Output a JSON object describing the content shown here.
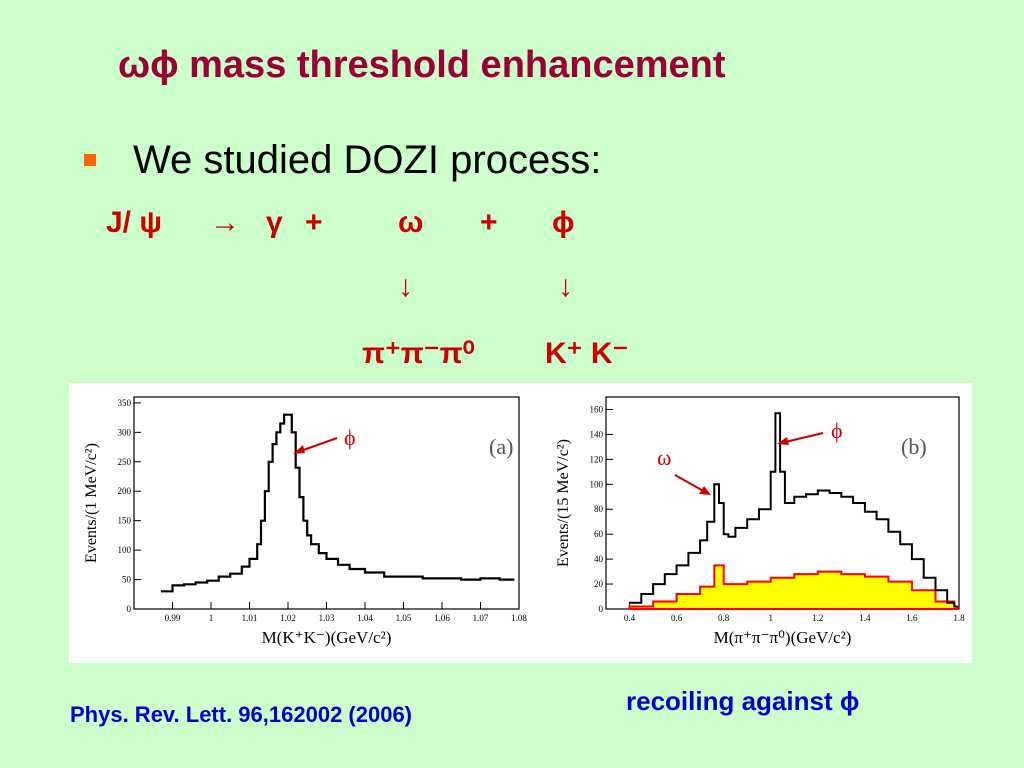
{
  "slide": {
    "title": "ωϕ mass threshold enhancement",
    "bullet": "We studied DOZI process:",
    "reaction": {
      "lhs": "J/ ψ",
      "arrow": "→",
      "gamma": "γ",
      "plus1": "+",
      "omega": "ω",
      "plus2": "+",
      "phi": "ϕ",
      "down1": "↓",
      "down2": "↓",
      "omega_decay": "π⁺π⁻π⁰",
      "phi_decay": "K⁺ K⁻"
    },
    "reference": "Phys. Rev. Lett. 96,162002 (2006)",
    "caption": "recoiling against ϕ"
  },
  "colors": {
    "title": "#990033",
    "reaction": "#cc0000",
    "reference": "#0000cc",
    "bullet": "#ff6600",
    "background": "#ccffcc",
    "fill": "#ffff00",
    "red_hist": "#ff0000"
  },
  "chart_data": [
    {
      "type": "line",
      "panel_label": "(a)",
      "xlabel": "M(K⁺K⁻)(GeV/c²)",
      "ylabel": "Events/(1 MeV/c²)",
      "xlim": [
        0.98,
        1.08
      ],
      "ylim": [
        0,
        360
      ],
      "x_ticks": [
        "0.99",
        "1",
        "1.01",
        "1.02",
        "1.03",
        "1.04",
        "1.05",
        "1.06",
        "1.07",
        "1.08"
      ],
      "y_ticks": [
        "0",
        "50",
        "100",
        "150",
        "200",
        "250",
        "300",
        "350"
      ],
      "annotation": "ϕ",
      "series": [
        {
          "x": [
            0.987,
            0.99,
            0.993,
            0.996,
            0.999,
            1.002,
            1.005,
            1.008,
            1.01,
            1.012,
            1.013,
            1.014,
            1.015,
            1.016,
            1.017,
            1.018,
            1.019,
            1.02,
            1.021,
            1.022,
            1.023,
            1.024,
            1.025,
            1.026,
            1.028,
            1.03,
            1.033,
            1.036,
            1.04,
            1.045,
            1.05,
            1.055,
            1.06,
            1.065,
            1.07,
            1.075,
            1.078
          ],
          "values": [
            30,
            40,
            42,
            45,
            48,
            55,
            60,
            72,
            85,
            110,
            150,
            200,
            250,
            280,
            300,
            315,
            330,
            330,
            300,
            240,
            190,
            150,
            125,
            110,
            95,
            85,
            75,
            68,
            62,
            55,
            55,
            52,
            52,
            50,
            52,
            50,
            50
          ]
        }
      ]
    },
    {
      "type": "line",
      "panel_label": "(b)",
      "xlabel": "M(π⁺π⁻π⁰)(GeV/c²)",
      "ylabel": "Events/(15 MeV/c²)",
      "xlim": [
        0.3,
        1.8
      ],
      "ylim": [
        0,
        170
      ],
      "x_ticks": [
        "0.4",
        "0.6",
        "0.8",
        "1",
        "1.2",
        "1.4",
        "1.6",
        "1.8"
      ],
      "y_ticks": [
        "0",
        "20",
        "40",
        "60",
        "80",
        "100",
        "120",
        "140",
        "160"
      ],
      "annotations": [
        "ω",
        "ϕ"
      ],
      "series": [
        {
          "x": [
            0.4,
            0.45,
            0.5,
            0.55,
            0.6,
            0.65,
            0.7,
            0.73,
            0.76,
            0.78,
            0.8,
            0.82,
            0.85,
            0.9,
            0.95,
            1.0,
            1.02,
            1.04,
            1.06,
            1.1,
            1.15,
            1.2,
            1.25,
            1.3,
            1.35,
            1.4,
            1.45,
            1.5,
            1.55,
            1.6,
            1.65,
            1.7,
            1.75,
            1.78
          ],
          "values": [
            5,
            12,
            20,
            28,
            35,
            45,
            55,
            70,
            100,
            85,
            60,
            58,
            65,
            72,
            80,
            110,
            157,
            110,
            85,
            90,
            92,
            95,
            93,
            90,
            85,
            78,
            72,
            62,
            52,
            40,
            25,
            15,
            5,
            2
          ]
        },
        {
          "x": [
            0.4,
            0.5,
            0.6,
            0.7,
            0.76,
            0.8,
            0.9,
            1.0,
            1.1,
            1.2,
            1.3,
            1.4,
            1.5,
            1.6,
            1.7,
            1.78
          ],
          "values": [
            2,
            6,
            12,
            18,
            35,
            20,
            22,
            25,
            28,
            30,
            28,
            26,
            22,
            15,
            6,
            2
          ]
        }
      ]
    }
  ]
}
